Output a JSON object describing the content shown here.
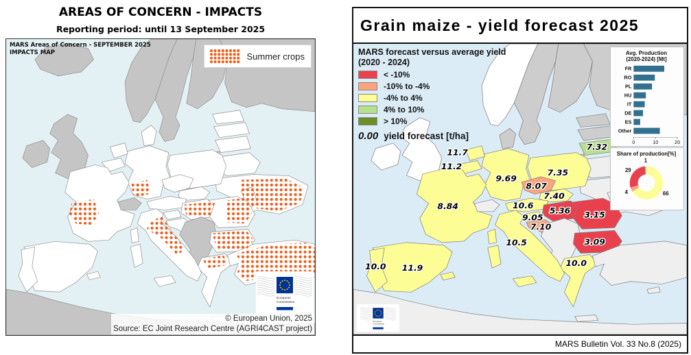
{
  "left_map": {
    "title": "AREAS OF CONCERN - IMPACTS",
    "subtitle": "Reporting period: until 13 September 2025",
    "map_label_line1": "MARS Areas of Concern - SEPTEMBER 2025",
    "map_label_line2": "IMPACTS MAP",
    "legend_label": "Summer crops",
    "dot_color": "#f25a16",
    "copyright": "© European Union, 2025",
    "source": "Source: EC Joint Research Centre (AGRI4CAST project)",
    "logo_line1": "European",
    "logo_line2": "Commission"
  },
  "right_map": {
    "title": "Grain maize - yield forecast 2025",
    "legend_title_line1": "MARS forecast versus average yield",
    "legend_title_line2": "(2020 - 2024)",
    "legend_classes": [
      {
        "label": "< -10%",
        "color": "#e8414d"
      },
      {
        "label": "-10% to -4%",
        "color": "#fba47d"
      },
      {
        "label": "-4% to 4%",
        "color": "#fdfd96"
      },
      {
        "label": "4% to 10%",
        "color": "#b7e08d"
      },
      {
        "label": "> 10%",
        "color": "#6d8d26"
      }
    ],
    "legend_value_example": "0.00",
    "legend_value_caption": "yield forecast [t/ha]",
    "footer": "MARS Bulletin Vol. 33 No.8 (2025)",
    "logo_line1": "European",
    "logo_line2": "Commission",
    "countries": [
      {
        "code": "PT",
        "name": "Portugal",
        "value": "10.0",
        "class": "-4% to 4%"
      },
      {
        "code": "ES",
        "name": "Spain",
        "value": "11.9",
        "class": "-4% to 4%"
      },
      {
        "code": "FR",
        "name": "France",
        "value": "8.84",
        "class": "-4% to 4%"
      },
      {
        "code": "NL",
        "name": "Netherlands",
        "value": "11.7",
        "class": "-4% to 4%"
      },
      {
        "code": "BE",
        "name": "Belgium",
        "value": "11.2",
        "class": "-4% to 4%"
      },
      {
        "code": "DE",
        "name": "Germany",
        "value": "9.69",
        "class": "-4% to 4%"
      },
      {
        "code": "PL",
        "name": "Poland",
        "value": "7.35",
        "class": "-4% to 4%"
      },
      {
        "code": "LT",
        "name": "Lithuania",
        "value": "7.32",
        "class": "4% to 10%"
      },
      {
        "code": "CZ",
        "name": "Czechia",
        "value": "8.07",
        "class": "-10% to -4%"
      },
      {
        "code": "SK",
        "name": "Slovakia",
        "value": "7.40",
        "class": "-4% to 4%"
      },
      {
        "code": "AT",
        "name": "Austria",
        "value": "10.6",
        "class": "-4% to 4%"
      },
      {
        "code": "HU",
        "name": "Hungary",
        "value": "5.36",
        "class": "< -10%"
      },
      {
        "code": "SI",
        "name": "Slovenia",
        "value": "9.05",
        "class": "-4% to 4%"
      },
      {
        "code": "HR",
        "name": "Croatia",
        "value": "7.10",
        "class": "-10% to -4%"
      },
      {
        "code": "RO",
        "name": "Romania",
        "value": "3.15",
        "class": "< -10%"
      },
      {
        "code": "BG",
        "name": "Bulgaria",
        "value": "3.09",
        "class": "< -10%"
      },
      {
        "code": "IT",
        "name": "Italy",
        "value": "10.5",
        "class": "-4% to 4%"
      },
      {
        "code": "GR",
        "name": "Greece",
        "value": "10.0",
        "class": "-4% to 4%"
      }
    ]
  },
  "chart_data": [
    {
      "type": "bar",
      "orientation": "horizontal",
      "title": "Avg. Production (2020-2024) [Mt]",
      "categories": [
        "FR",
        "RO",
        "PL",
        "HU",
        "IT",
        "DE",
        "ES",
        "Other"
      ],
      "values": [
        14,
        9.7,
        8.4,
        5.6,
        5.1,
        4.3,
        3,
        12
      ],
      "xlabel": "",
      "ylabel": "",
      "xlim": [
        0,
        20
      ],
      "xticks": [
        0,
        10,
        20
      ],
      "bar_color": "#31708f",
      "grid": false,
      "legend_position": "none"
    },
    {
      "type": "pie",
      "donut": true,
      "title": "Share of production[%]",
      "labels": [
        "66",
        "4",
        "29",
        "1"
      ],
      "values": [
        66,
        4,
        29,
        1
      ],
      "colors": [
        "#fdfd96",
        "#fba47d",
        "#e8414d",
        "#b7e08d"
      ],
      "start": "top",
      "direction": "clockwise",
      "legend_position": "none"
    }
  ]
}
